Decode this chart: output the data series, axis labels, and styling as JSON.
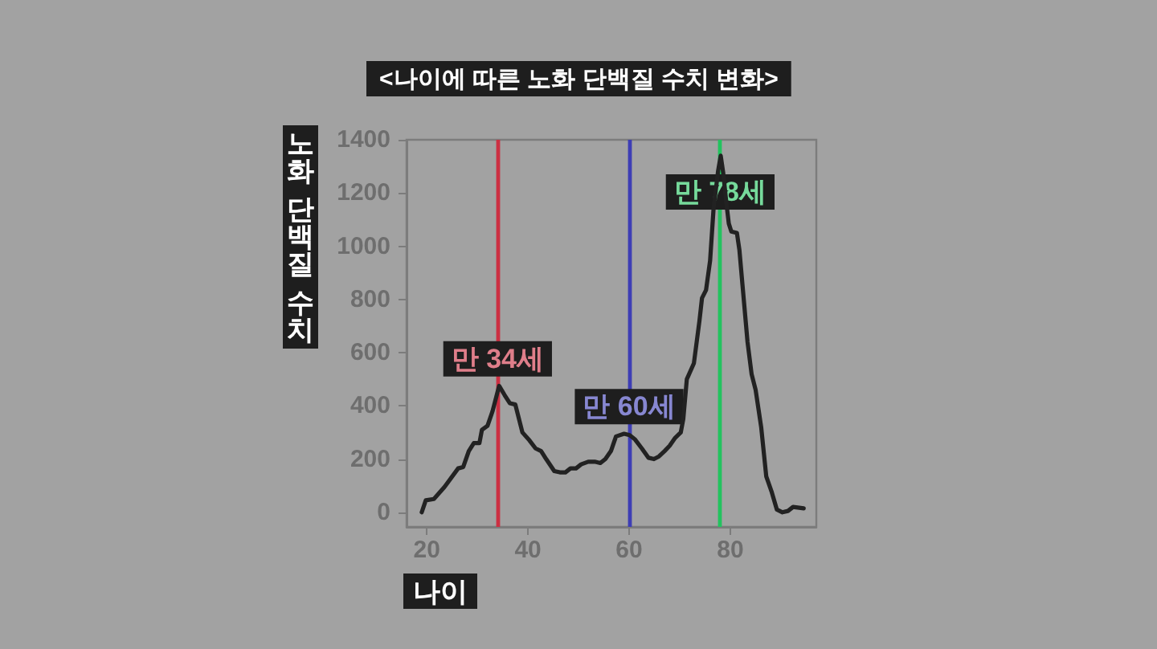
{
  "chart_data": {
    "type": "line",
    "title": "<나이에 따른 노화 단백질 수치 변화>",
    "xlabel": "나이",
    "ylabel": "노화 단백질 수치",
    "x": [
      19.0,
      19.8,
      21.4,
      23.5,
      26.2,
      27.2,
      28.3,
      29.3,
      30.4,
      30.9,
      32.0,
      33.0,
      34.3,
      35.4,
      36.4,
      37.5,
      38.9,
      40.3,
      41.5,
      42.6,
      43.6,
      45.2,
      46.3,
      47.4,
      48.4,
      49.5,
      50.5,
      51.9,
      53.2,
      54.3,
      55.3,
      56.4,
      57.4,
      59.0,
      60.1,
      61.1,
      62.5,
      63.8,
      64.9,
      65.9,
      67.0,
      68.0,
      69.1,
      70.2,
      70.7,
      71.4,
      72.8,
      73.9,
      74.4,
      75.2,
      76.0,
      76.7,
      77.6,
      78.1,
      78.6,
      79.2,
      79.7,
      80.2,
      81.3,
      81.8,
      82.4,
      83.4,
      84.2,
      85.0,
      86.1,
      87.1,
      88.2,
      89.2,
      90.3,
      91.4,
      92.4,
      94.5
    ],
    "series": [
      {
        "color": "#222222",
        "values": [
          0,
          45,
          50,
          95,
          165,
          170,
          230,
          260,
          260,
          310,
          325,
          380,
          475,
          440,
          410,
          405,
          300,
          270,
          240,
          230,
          200,
          155,
          150,
          150,
          165,
          165,
          180,
          190,
          190,
          185,
          200,
          230,
          285,
          295,
          290,
          275,
          240,
          205,
          200,
          210,
          230,
          250,
          280,
          300,
          350,
          500,
          560,
          720,
          805,
          835,
          945,
          1145,
          1285,
          1340,
          1275,
          1165,
          1085,
          1055,
          1050,
          985,
          855,
          640,
          520,
          460,
          320,
          135,
          75,
          10,
          0,
          5,
          20,
          15
        ]
      }
    ],
    "xlim": [
      16,
      97
    ],
    "ylim": [
      -55,
      1400
    ],
    "xticks": [
      20,
      40,
      60,
      80
    ],
    "yticks": [
      0,
      200,
      400,
      600,
      800,
      1000,
      1200,
      1400
    ],
    "grid": false,
    "marker": "none",
    "line_style": "solid",
    "ref_lines": [
      {
        "axis": "x",
        "value": 34,
        "label": "만 34세",
        "color": "#cc2f42"
      },
      {
        "axis": "x",
        "value": 60,
        "label": "만 60세",
        "color": "#3d3db5"
      },
      {
        "axis": "x",
        "value": 78,
        "label": "만 78세",
        "color": "#22c35e"
      }
    ]
  }
}
